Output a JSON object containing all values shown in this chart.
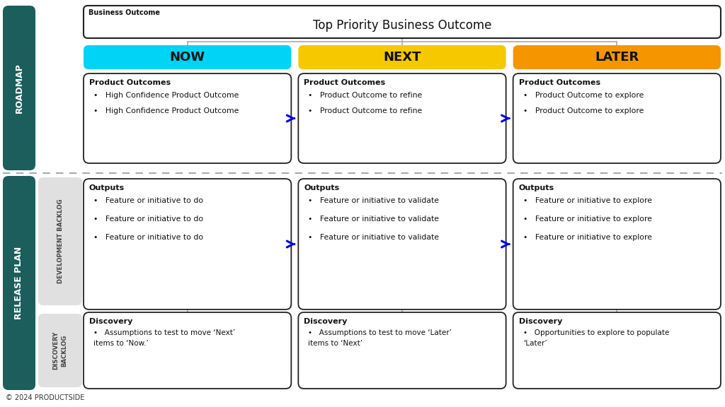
{
  "bg_color": "#ffffff",
  "teal_color": "#1b5e5b",
  "light_gray": "#e0e0e0",
  "cyan_color": "#00d4f5",
  "yellow_color": "#f5c800",
  "orange_color": "#f59500",
  "blue_arrow": "#0000ee",
  "text_dark": "#111111",
  "roadmap_label": "ROADMAP",
  "release_plan_label": "RELEASE PLAN",
  "dev_backlog_label": "DEVELOPMENT BACKLOG",
  "discovery_backlog_label": "DISCOVERY\nBACKLOG",
  "business_outcome_label": "Business Outcome",
  "business_outcome_title": "Top Priority Business Outcome",
  "now_label": "NOW",
  "next_label": "NEXT",
  "later_label": "LATER",
  "copyright": "© 2024 PRODUCTSIDE",
  "product_outcomes_title": "Product Outcomes",
  "outputs_title": "Outputs",
  "discovery_title": "Discovery",
  "now_product_items": [
    "High Confidence Product Outcome",
    "High Confidence Product Outcome"
  ],
  "next_product_items": [
    "Product Outcome to refine",
    "Product Outcome to refine"
  ],
  "later_product_items": [
    "Product Outcome to explore",
    "Product Outcome to explore"
  ],
  "now_output_items": [
    "Feature or initiative to do",
    "Feature or initiative to do",
    "Feature or initiative to do"
  ],
  "next_output_items": [
    "Feature or initiative to validate",
    "Feature or initiative to validate",
    "Feature or initiative to validate"
  ],
  "later_output_items": [
    "Feature or initiative to explore",
    "Feature or initiative to explore",
    "Feature or initiative to explore"
  ],
  "now_discovery_items": [
    "Assumptions to test to move ‘Next’\nitems to ‘Now.’"
  ],
  "next_discovery_items": [
    "Assumptions to test to move ‘Later’\nitems to ‘Next’"
  ],
  "later_discovery_items": [
    "Opportunities to explore to populate\n‘Later’"
  ]
}
